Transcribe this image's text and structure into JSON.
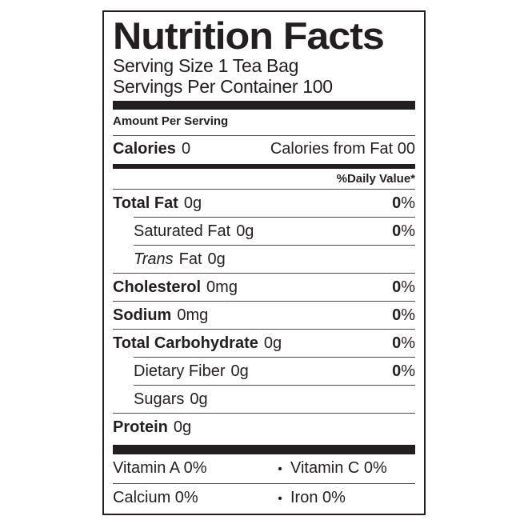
{
  "label": {
    "title": "Nutrition Facts",
    "serving_size": "Serving Size 1 Tea Bag",
    "servings_per_container": "Servings Per Container 100",
    "amount_per_serving": "Amount Per Serving",
    "calories_label": "Calories",
    "calories_value": "0",
    "calories_from_fat": "Calories from Fat 00",
    "daily_value_header": "%Daily Value*",
    "rows": {
      "total_fat": {
        "name": "Total Fat",
        "amount": "0g",
        "dv": "0",
        "pct": "%"
      },
      "saturated_fat": {
        "name": "Saturated Fat",
        "amount": "0g",
        "dv": "0",
        "pct": "%"
      },
      "trans_fat": {
        "name_italic": "Trans",
        "name_rest": "Fat",
        "amount": "0g"
      },
      "cholesterol": {
        "name": "Cholesterol",
        "amount": "0mg",
        "dv": "0",
        "pct": "%"
      },
      "sodium": {
        "name": "Sodium",
        "amount": "0mg",
        "dv": "0",
        "pct": "%"
      },
      "total_carbohydrate": {
        "name": "Total Carbohydrate",
        "amount": "0g",
        "dv": "0",
        "pct": "%"
      },
      "dietary_fiber": {
        "name": "Dietary Fiber",
        "amount": "0g",
        "dv": "0",
        "pct": "%"
      },
      "sugars": {
        "name": "Sugars",
        "amount": "0g"
      },
      "protein": {
        "name": "Protein",
        "amount": "0g"
      }
    },
    "micronutrients": [
      {
        "left": "Vitamin A 0%",
        "bullet": "•",
        "right": "Vitamin C 0%"
      },
      {
        "left": "Calcium 0%",
        "bullet": "•",
        "right": "Iron 0%"
      }
    ],
    "colors": {
      "ink": "#231f20",
      "background": "#ffffff"
    }
  }
}
